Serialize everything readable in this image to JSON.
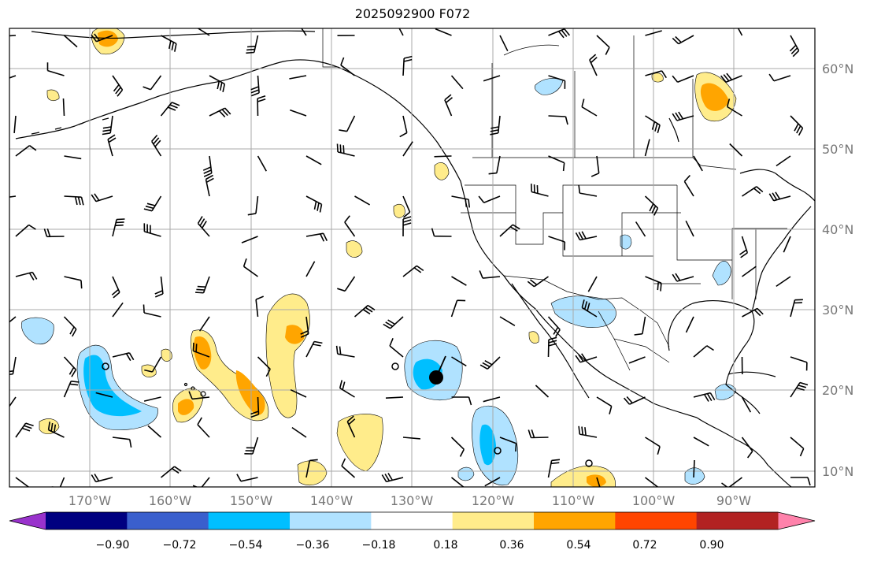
{
  "title": "2025092900 F072",
  "map": {
    "lat_labels": [
      "60°N",
      "50°N",
      "40°N",
      "30°N",
      "20°N",
      "10°N"
    ],
    "lon_labels": [
      "170°W",
      "160°W",
      "150°W",
      "140°W",
      "130°W",
      "120°W",
      "110°W",
      "100°W",
      "90°W"
    ],
    "extent": {
      "lon_min": -178,
      "lon_max": -78,
      "lat_min": 8,
      "lat_max": 65
    },
    "gridlines": true
  },
  "colorbar": {
    "ticks": [
      "−0.90",
      "−0.72",
      "−0.54",
      "−0.36",
      "−0.18",
      "0.18",
      "0.36",
      "0.54",
      "0.72",
      "0.90"
    ],
    "colors": [
      "#9932cc",
      "#000080",
      "#3a5fcd",
      "#00bfff",
      "#b0e2ff",
      "#ffffff",
      "#ffec8b",
      "#ffa500",
      "#ff4500",
      "#b22222",
      "#ff82ab"
    ],
    "extend": "both"
  },
  "colors": {
    "coast": "#000000",
    "grid": "#a9a9a9"
  }
}
